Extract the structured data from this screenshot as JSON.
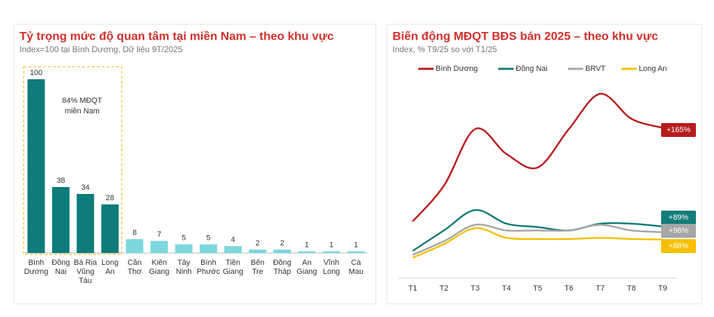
{
  "chart_data": [
    {
      "type": "bar",
      "title": "Tỷ trọng mức độ quan tâm tại miền Nam – theo khu vực",
      "subtitle": "Index=100 tại Bình Dương, Dữ liệu 9T/2025",
      "annotation": "84% MĐQT\nmiền Nam",
      "categories": [
        "Bình\nDương",
        "Đồng\nNai",
        "Bà Rịa\nVũng\nTàu",
        "Long\nAn",
        "Cần\nThơ",
        "Kiên\nGiang",
        "Tây\nNinh",
        "Bình\nPhước",
        "Tiền\nGiang",
        "Bến\nTre",
        "Đồng\nTháp",
        "An\nGiang",
        "Vĩnh\nLong",
        "Cà\nMau"
      ],
      "values": [
        100,
        38,
        34,
        28,
        8,
        7,
        5,
        5,
        4,
        2,
        2,
        1,
        1,
        1
      ],
      "colors": [
        "#0e7c7b",
        "#0e7c7b",
        "#0e7c7b",
        "#0e7c7b",
        "#7dd8de",
        "#7dd8de",
        "#7dd8de",
        "#7dd8de",
        "#7dd8de",
        "#7dd8de",
        "#7dd8de",
        "#7dd8de",
        "#7dd8de",
        "#7dd8de"
      ]
    },
    {
      "type": "line",
      "title": "Biến động MĐQT BĐS bán 2025 – theo khu vực",
      "subtitle": "Index, %  T9/25 so với T1/25",
      "categories": [
        "T1",
        "T2",
        "T3",
        "T4",
        "T5",
        "T6",
        "T7",
        "T8",
        "T9"
      ],
      "series": [
        {
          "name": "Bình Dương",
          "color": "#b71c1c",
          "values": [
            100,
            163,
            263,
            219,
            195,
            263,
            325,
            281,
            265
          ],
          "change_label": "+165%"
        },
        {
          "name": "Đồng Nai",
          "color": "#137b78",
          "values": [
            48,
            84,
            120,
            96,
            90,
            84,
            96,
            96,
            91
          ],
          "change_label": "+89%"
        },
        {
          "name": "BRVT",
          "color": "#a6a6a6",
          "values": [
            41,
            65,
            94,
            84,
            84,
            84,
            94,
            84,
            81
          ],
          "change_label": "+98%"
        },
        {
          "name": "Long An",
          "color": "#f5c000",
          "values": [
            36,
            60,
            88,
            71,
            69,
            69,
            71,
            69,
            68
          ],
          "change_label": "+88%"
        }
      ]
    }
  ]
}
